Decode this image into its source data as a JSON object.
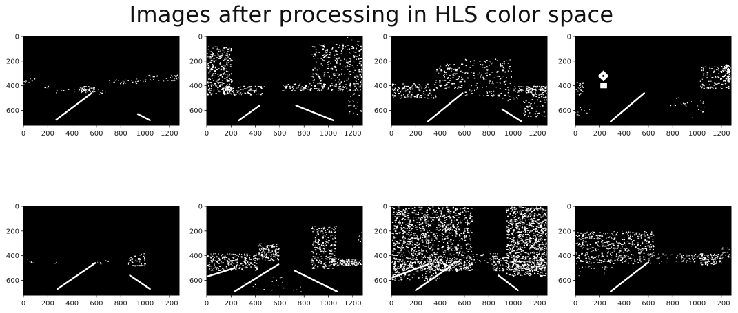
{
  "figure": {
    "title": "Images after processing in HLS color space"
  },
  "axes_common": {
    "xticks": [
      "0",
      "200",
      "400",
      "600",
      "800",
      "1000",
      "1200"
    ],
    "yticks": [
      "0",
      "200",
      "400",
      "600"
    ],
    "xlim": [
      0,
      1280
    ],
    "ylim_top_to_bottom": [
      0,
      720
    ],
    "background_color": "#000000",
    "mark_color": "#ffffff"
  },
  "chart_data": {
    "type": "image_grid",
    "rows": 2,
    "cols": 4,
    "x_unit": "pixel column",
    "y_unit": "pixel row",
    "panels": [
      {
        "segments": [
          [
            270,
            675,
            560,
            460
          ],
          [
            940,
            630,
            1040,
            680
          ]
        ],
        "features": [
          {
            "kind": "speck",
            "x": [
              0,
              90
            ],
            "y": [
              340,
              400
            ],
            "n": 10
          },
          {
            "kind": "speck",
            "x": [
              160,
              220
            ],
            "y": [
              390,
              420
            ],
            "n": 6
          },
          {
            "kind": "cluster",
            "x": [
              450,
              580
            ],
            "y": [
              400,
              450
            ],
            "n": 50
          },
          {
            "kind": "speck",
            "x": [
              700,
              1000
            ],
            "y": [
              340,
              380
            ],
            "n": 30
          },
          {
            "kind": "speck",
            "x": [
              1000,
              1280
            ],
            "y": [
              310,
              360
            ],
            "n": 40
          },
          {
            "kind": "speck",
            "x": [
              250,
              700
            ],
            "y": [
              420,
              470
            ],
            "n": 20
          }
        ]
      },
      {
        "segments": [
          [
            265,
            680,
            435,
            560
          ],
          [
            735,
            560,
            1040,
            680
          ]
        ],
        "features": [
          {
            "kind": "cluster",
            "x": [
              0,
              200
            ],
            "y": [
              80,
              400
            ],
            "n": 240
          },
          {
            "kind": "cluster",
            "x": [
              130,
              200
            ],
            "y": [
              400,
              470
            ],
            "n": 70
          },
          {
            "kind": "cluster",
            "x": [
              0,
              470
            ],
            "y": [
              400,
              470
            ],
            "n": 110
          },
          {
            "kind": "cluster",
            "x": [
              620,
              1280
            ],
            "y": [
              380,
              440
            ],
            "n": 150
          },
          {
            "kind": "cluster",
            "x": [
              860,
              1280
            ],
            "y": [
              60,
              380
            ],
            "n": 260
          },
          {
            "kind": "speck",
            "x": [
              1150,
              1280
            ],
            "y": [
              420,
              640
            ],
            "n": 40
          },
          {
            "kind": "speck",
            "x": [
              1100,
              1280
            ],
            "y": [
              0,
              100
            ],
            "n": 15
          }
        ]
      },
      {
        "segments": [
          [
            300,
            690,
            585,
            460
          ],
          [
            910,
            590,
            1070,
            690
          ]
        ],
        "features": [
          {
            "kind": "cluster",
            "x": [
              0,
              360
            ],
            "y": [
              380,
              500
            ],
            "n": 140
          },
          {
            "kind": "cluster",
            "x": [
              360,
              580
            ],
            "y": [
              220,
              420
            ],
            "n": 110
          },
          {
            "kind": "cluster",
            "x": [
              600,
              980
            ],
            "y": [
              180,
              480
            ],
            "n": 140
          },
          {
            "kind": "cluster",
            "x": [
              1000,
              1280
            ],
            "y": [
              400,
              440
            ],
            "n": 40
          },
          {
            "kind": "cluster",
            "x": [
              1100,
              1280
            ],
            "y": [
              400,
              470
            ],
            "n": 80
          },
          {
            "kind": "cluster",
            "x": [
              1080,
              1280
            ],
            "y": [
              480,
              650
            ],
            "n": 60
          },
          {
            "kind": "speck",
            "x": [
              780,
              1080
            ],
            "y": [
              440,
              520
            ],
            "n": 40
          }
        ]
      },
      {
        "segments": [
          [
            290,
            690,
            565,
            460
          ]
        ],
        "features": [
          {
            "kind": "diamond",
            "cx": 230,
            "cy": 320,
            "r": 45
          },
          {
            "kind": "block",
            "x": [
              205,
              260
            ],
            "y": [
              375,
              420
            ]
          },
          {
            "kind": "cluster",
            "x": [
              0,
              60
            ],
            "y": [
              370,
              480
            ],
            "n": 30
          },
          {
            "kind": "cluster",
            "x": [
              1020,
              1280
            ],
            "y": [
              240,
              420
            ],
            "n": 120
          },
          {
            "kind": "cluster",
            "x": [
              1200,
              1280
            ],
            "y": [
              220,
              360
            ],
            "n": 60
          },
          {
            "kind": "speck",
            "x": [
              0,
              120
            ],
            "y": [
              560,
              640
            ],
            "n": 10
          },
          {
            "kind": "speck",
            "x": [
              770,
              920
            ],
            "y": [
              490,
              560
            ],
            "n": 15
          },
          {
            "kind": "speck",
            "x": [
              880,
              1060
            ],
            "y": [
              520,
              660
            ],
            "n": 20
          }
        ]
      },
      {
        "segments": [
          [
            280,
            670,
            590,
            460
          ],
          [
            875,
            560,
            1040,
            670
          ]
        ],
        "features": [
          {
            "kind": "speck",
            "x": [
              0,
              80
            ],
            "y": [
              430,
              460
            ],
            "n": 6
          },
          {
            "kind": "speck",
            "x": [
              240,
              300
            ],
            "y": [
              440,
              470
            ],
            "n": 3
          },
          {
            "kind": "cluster",
            "x": [
              860,
              1000
            ],
            "y": [
              380,
              480
            ],
            "n": 40
          },
          {
            "kind": "speck",
            "x": [
              560,
              700
            ],
            "y": [
              430,
              470
            ],
            "n": 8
          }
        ]
      },
      {
        "segments": [
          [
            230,
            690,
            590,
            470
          ],
          [
            720,
            520,
            1070,
            690
          ],
          [
            0,
            570,
            230,
            500
          ]
        ],
        "features": [
          {
            "kind": "cluster",
            "x": [
              0,
              420
            ],
            "y": [
              380,
              520
            ],
            "n": 220
          },
          {
            "kind": "cluster",
            "x": [
              420,
              590
            ],
            "y": [
              300,
              440
            ],
            "n": 140
          },
          {
            "kind": "cluster",
            "x": [
              860,
              1060
            ],
            "y": [
              160,
              500
            ],
            "n": 220
          },
          {
            "kind": "cluster",
            "x": [
              1000,
              1280
            ],
            "y": [
              420,
              480
            ],
            "n": 80
          },
          {
            "kind": "cluster",
            "x": [
              1090,
              1220
            ],
            "y": [
              430,
              470
            ],
            "n": 50
          },
          {
            "kind": "speck",
            "x": [
              300,
              800
            ],
            "y": [
              560,
              690
            ],
            "n": 25
          },
          {
            "kind": "speck",
            "x": [
              1240,
              1280
            ],
            "y": [
              200,
              300
            ],
            "n": 10
          }
        ]
      },
      {
        "segments": [
          [
            200,
            680,
            480,
            490
          ],
          [
            880,
            560,
            1040,
            680
          ],
          [
            0,
            580,
            300,
            470
          ]
        ],
        "features": [
          {
            "kind": "cluster",
            "x": [
              0,
              660
            ],
            "y": [
              0,
              520
            ],
            "n": 1100
          },
          {
            "kind": "cluster",
            "x": [
              940,
              1280
            ],
            "y": [
              0,
              560
            ],
            "n": 900
          },
          {
            "kind": "cluster",
            "x": [
              0,
              400
            ],
            "y": [
              440,
              600
            ],
            "n": 180
          },
          {
            "kind": "cluster",
            "x": [
              300,
              660
            ],
            "y": [
              420,
              520
            ],
            "n": 180
          },
          {
            "kind": "cluster",
            "x": [
              820,
              1280
            ],
            "y": [
              400,
              520
            ],
            "n": 220
          },
          {
            "kind": "speck",
            "x": [
              660,
              940
            ],
            "y": [
              380,
              460
            ],
            "n": 40
          }
        ]
      },
      {
        "segments": [
          [
            290,
            690,
            590,
            460
          ]
        ],
        "features": [
          {
            "kind": "cluster",
            "x": [
              0,
              640
            ],
            "y": [
              200,
              460
            ],
            "n": 480
          },
          {
            "kind": "cluster",
            "x": [
              1000,
              1200
            ],
            "y": [
              380,
              470
            ],
            "n": 90
          },
          {
            "kind": "cluster",
            "x": [
              850,
              1000
            ],
            "y": [
              380,
              450
            ],
            "n": 40
          },
          {
            "kind": "speck",
            "x": [
              1200,
              1280
            ],
            "y": [
              330,
              420
            ],
            "n": 20
          },
          {
            "kind": "speck",
            "x": [
              640,
              860
            ],
            "y": [
              380,
              460
            ],
            "n": 25
          },
          {
            "kind": "speck",
            "x": [
              0,
              300
            ],
            "y": [
              430,
              560
            ],
            "n": 30
          }
        ]
      }
    ]
  }
}
